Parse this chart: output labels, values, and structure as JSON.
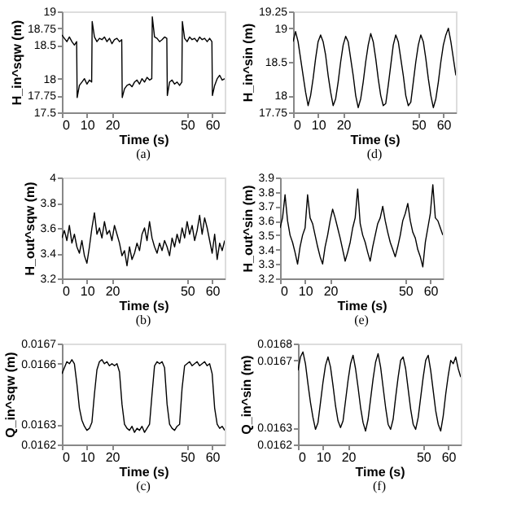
{
  "chart_data": [
    {
      "type": "line",
      "title": "(a)",
      "xlabel": "Time (s)",
      "ylabel": "H_in^sqw (m)",
      "color": "#000000",
      "xlim": [
        0,
        65
      ],
      "xticks": [
        0,
        10,
        20,
        50,
        60
      ],
      "ylim": [
        17.5,
        19
      ],
      "yticks": [
        17.5,
        17.75,
        18,
        18.5,
        18.75,
        19
      ],
      "x": [
        0,
        1,
        2,
        3,
        4,
        5,
        5.9,
        6.1,
        7,
        8,
        9,
        10,
        11,
        11.9,
        12.1,
        13,
        14,
        15,
        16,
        17,
        18,
        19,
        20,
        21,
        22,
        23,
        23.9,
        24.1,
        25,
        26,
        27,
        28,
        29,
        30,
        31,
        32,
        33,
        34,
        35,
        35.9,
        36.1,
        37,
        38,
        39,
        40,
        41,
        41.9,
        42.1,
        43,
        44,
        45,
        46,
        47,
        47.9,
        48.1,
        49,
        50,
        51,
        52,
        53,
        54,
        55,
        56,
        57,
        58,
        59,
        59.9,
        60.1,
        61,
        62,
        63,
        64,
        65
      ],
      "values": [
        18.65,
        18.6,
        18.55,
        18.62,
        18.55,
        18.5,
        18.55,
        17.72,
        17.9,
        17.95,
        18.0,
        17.92,
        17.98,
        17.95,
        18.85,
        18.62,
        18.55,
        18.6,
        18.58,
        18.62,
        18.55,
        18.6,
        18.52,
        18.58,
        18.6,
        18.55,
        18.58,
        17.72,
        17.85,
        17.9,
        17.92,
        17.88,
        17.95,
        17.98,
        17.92,
        18.0,
        17.95,
        18.02,
        17.98,
        18.0,
        18.92,
        18.62,
        18.6,
        18.55,
        18.58,
        18.62,
        18.6,
        17.75,
        17.95,
        17.98,
        17.92,
        17.95,
        17.9,
        17.95,
        18.85,
        18.6,
        18.55,
        18.62,
        18.58,
        18.6,
        18.55,
        18.62,
        18.58,
        18.6,
        18.55,
        18.6,
        18.55,
        17.75,
        17.9,
        18.0,
        18.05,
        17.98,
        18.0
      ]
    },
    {
      "type": "line",
      "title": "(d)",
      "xlabel": "Time (s)",
      "ylabel": "H_in^sin (m)",
      "color": "#000000",
      "xlim": [
        0,
        65
      ],
      "xticks": [
        0,
        10,
        20,
        50,
        60
      ],
      "ylim": [
        17.75,
        19.25
      ],
      "yticks": [
        17.75,
        18,
        18.5,
        19,
        19.25
      ],
      "x": [
        0,
        1,
        2,
        3,
        4,
        5,
        6,
        7,
        8,
        9,
        10,
        11,
        12,
        13,
        14,
        15,
        16,
        17,
        18,
        19,
        20,
        21,
        22,
        23,
        24,
        25,
        26,
        27,
        28,
        29,
        30,
        31,
        32,
        33,
        34,
        35,
        36,
        37,
        38,
        39,
        40,
        41,
        42,
        43,
        44,
        45,
        46,
        47,
        48,
        49,
        50,
        51,
        52,
        53,
        54,
        55,
        56,
        57,
        58,
        59,
        60,
        61,
        62,
        63,
        64,
        65
      ],
      "values": [
        18.8,
        18.95,
        18.8,
        18.55,
        18.3,
        18.05,
        17.85,
        18.0,
        18.25,
        18.55,
        18.8,
        18.9,
        18.8,
        18.6,
        18.3,
        18.05,
        17.85,
        17.95,
        18.2,
        18.5,
        18.75,
        18.88,
        18.8,
        18.55,
        18.3,
        18.0,
        17.82,
        17.95,
        18.2,
        18.5,
        18.75,
        18.92,
        18.8,
        18.55,
        18.25,
        18.0,
        17.85,
        17.88,
        18.15,
        18.45,
        18.75,
        18.9,
        18.8,
        18.55,
        18.3,
        18.0,
        17.85,
        17.9,
        18.2,
        18.5,
        18.75,
        18.9,
        18.8,
        18.55,
        18.25,
        18.0,
        17.82,
        17.95,
        18.2,
        18.5,
        18.75,
        18.9,
        19.0,
        18.8,
        18.55,
        18.3
      ]
    },
    {
      "type": "line",
      "title": "(b)",
      "xlabel": "Time (s)",
      "ylabel": "H_out^sqw (m)",
      "color": "#000000",
      "xlim": [
        0,
        65
      ],
      "xticks": [
        0,
        10,
        20,
        50,
        60
      ],
      "ylim": [
        3.2,
        4
      ],
      "yticks": [
        3.2,
        3.4,
        3.6,
        3.8,
        4
      ],
      "x": [
        0,
        1,
        2,
        3,
        4,
        5,
        6,
        7,
        8,
        9,
        10,
        11,
        12,
        13,
        14,
        15,
        16,
        17,
        18,
        19,
        20,
        21,
        22,
        23,
        24,
        25,
        26,
        27,
        28,
        29,
        30,
        31,
        32,
        33,
        34,
        35,
        36,
        37,
        38,
        39,
        40,
        41,
        42,
        43,
        44,
        45,
        46,
        47,
        48,
        49,
        50,
        51,
        52,
        53,
        54,
        55,
        56,
        57,
        58,
        59,
        60,
        61,
        62,
        63,
        64,
        65
      ],
      "values": [
        3.52,
        3.58,
        3.5,
        3.62,
        3.48,
        3.55,
        3.45,
        3.4,
        3.5,
        3.38,
        3.32,
        3.45,
        3.6,
        3.72,
        3.55,
        3.6,
        3.52,
        3.65,
        3.55,
        3.58,
        3.5,
        3.62,
        3.55,
        3.48,
        3.38,
        3.42,
        3.3,
        3.45,
        3.35,
        3.4,
        3.48,
        3.42,
        3.55,
        3.6,
        3.5,
        3.65,
        3.52,
        3.45,
        3.4,
        3.48,
        3.42,
        3.5,
        3.45,
        3.38,
        3.52,
        3.45,
        3.55,
        3.48,
        3.6,
        3.52,
        3.65,
        3.55,
        3.62,
        3.5,
        3.58,
        3.7,
        3.55,
        3.68,
        3.6,
        3.5,
        3.4,
        3.55,
        3.35,
        3.48,
        3.42,
        3.5
      ]
    },
    {
      "type": "line",
      "title": "(e)",
      "xlabel": "Time (s)",
      "ylabel": "H_out^sin (m)",
      "color": "#000000",
      "xlim": [
        0,
        65
      ],
      "xticks": [
        0,
        10,
        20,
        50,
        60
      ],
      "ylim": [
        3.2,
        3.9
      ],
      "yticks": [
        3.2,
        3.3,
        3.4,
        3.5,
        3.6,
        3.7,
        3.8,
        3.9
      ],
      "x": [
        0,
        1,
        2,
        3,
        4,
        5,
        6,
        7,
        8,
        9,
        10,
        11,
        12,
        13,
        14,
        15,
        16,
        17,
        18,
        19,
        20,
        21,
        22,
        23,
        24,
        25,
        26,
        27,
        28,
        29,
        30,
        31,
        32,
        33,
        34,
        35,
        36,
        37,
        38,
        39,
        40,
        41,
        42,
        43,
        44,
        45,
        46,
        47,
        48,
        49,
        50,
        51,
        52,
        53,
        54,
        55,
        56,
        57,
        58,
        59,
        60,
        61,
        62,
        63,
        64,
        65
      ],
      "values": [
        3.55,
        3.62,
        3.78,
        3.6,
        3.5,
        3.45,
        3.38,
        3.3,
        3.42,
        3.5,
        3.55,
        3.78,
        3.62,
        3.58,
        3.5,
        3.42,
        3.35,
        3.3,
        3.42,
        3.5,
        3.6,
        3.68,
        3.62,
        3.55,
        3.48,
        3.4,
        3.32,
        3.38,
        3.45,
        3.55,
        3.62,
        3.82,
        3.58,
        3.5,
        3.45,
        3.38,
        3.32,
        3.42,
        3.5,
        3.58,
        3.62,
        3.7,
        3.6,
        3.52,
        3.45,
        3.4,
        3.35,
        3.42,
        3.5,
        3.6,
        3.65,
        3.72,
        3.6,
        3.52,
        3.48,
        3.4,
        3.35,
        3.28,
        3.45,
        3.55,
        3.65,
        3.85,
        3.62,
        3.6,
        3.55,
        3.5
      ]
    },
    {
      "type": "line",
      "title": "(c)",
      "xlabel": "Time (s)",
      "ylabel": "Q_in^sqw (m)",
      "color": "#000000",
      "xlim": [
        0,
        65
      ],
      "xticks": [
        0,
        10,
        20,
        50,
        60
      ],
      "ylim": [
        0.0162,
        0.0167
      ],
      "yticks": [
        0.0162,
        0.0163,
        0.0166,
        0.0167
      ],
      "x": [
        0,
        1,
        2,
        3,
        4,
        5,
        6,
        7,
        8,
        9,
        10,
        11,
        12,
        13,
        14,
        15,
        16,
        17,
        18,
        19,
        20,
        21,
        22,
        23,
        24,
        25,
        26,
        27,
        28,
        29,
        30,
        31,
        32,
        33,
        34,
        35,
        36,
        37,
        38,
        39,
        40,
        41,
        42,
        43,
        44,
        45,
        46,
        47,
        48,
        49,
        50,
        51,
        52,
        53,
        54,
        55,
        56,
        57,
        58,
        59,
        60,
        61,
        62,
        63,
        64,
        65
      ],
      "values": [
        0.01655,
        0.01658,
        0.01661,
        0.0166,
        0.01662,
        0.0166,
        0.0165,
        0.01638,
        0.01632,
        0.01629,
        0.01627,
        0.01628,
        0.01631,
        0.01645,
        0.01657,
        0.01661,
        0.01662,
        0.0166,
        0.01661,
        0.01659,
        0.0166,
        0.01659,
        0.0166,
        0.01656,
        0.0164,
        0.0163,
        0.01628,
        0.01627,
        0.01629,
        0.01626,
        0.01628,
        0.01627,
        0.01629,
        0.01626,
        0.01628,
        0.0163,
        0.01645,
        0.01659,
        0.01661,
        0.0166,
        0.01661,
        0.01658,
        0.0164,
        0.0163,
        0.01628,
        0.01627,
        0.01629,
        0.0163,
        0.01648,
        0.01659,
        0.0166,
        0.01661,
        0.01659,
        0.0166,
        0.01661,
        0.01659,
        0.0166,
        0.01661,
        0.01659,
        0.0166,
        0.01655,
        0.01638,
        0.0163,
        0.01628,
        0.01629,
        0.01627
      ]
    },
    {
      "type": "line",
      "title": "(f)",
      "xlabel": "Time (s)",
      "ylabel": "Q_in^sin (m)",
      "color": "#000000",
      "xlim": [
        0,
        65
      ],
      "xticks": [
        0,
        10,
        20,
        50,
        60
      ],
      "ylim": [
        0.0162,
        0.0168
      ],
      "yticks": [
        0.0162,
        0.0163,
        0.0167,
        0.0168
      ],
      "x": [
        0,
        1,
        2,
        3,
        4,
        5,
        6,
        7,
        8,
        9,
        10,
        11,
        12,
        13,
        14,
        15,
        16,
        17,
        18,
        19,
        20,
        21,
        22,
        23,
        24,
        25,
        26,
        27,
        28,
        29,
        30,
        31,
        32,
        33,
        34,
        35,
        36,
        37,
        38,
        39,
        40,
        41,
        42,
        43,
        44,
        45,
        46,
        47,
        48,
        49,
        50,
        51,
        52,
        53,
        54,
        55,
        56,
        57,
        58,
        59,
        60,
        61,
        62,
        63,
        64,
        65
      ],
      "values": [
        0.01664,
        0.01672,
        0.01675,
        0.01668,
        0.01656,
        0.01645,
        0.01636,
        0.01629,
        0.01633,
        0.01645,
        0.01657,
        0.01667,
        0.01672,
        0.01666,
        0.01655,
        0.01643,
        0.01634,
        0.0163,
        0.01634,
        0.01646,
        0.01658,
        0.01668,
        0.01673,
        0.01665,
        0.01654,
        0.01642,
        0.01633,
        0.01628,
        0.01635,
        0.01647,
        0.01659,
        0.01669,
        0.01674,
        0.01666,
        0.01654,
        0.01642,
        0.01632,
        0.01629,
        0.01635,
        0.01648,
        0.0166,
        0.0167,
        0.01672,
        0.01665,
        0.01653,
        0.01641,
        0.01632,
        0.01629,
        0.01636,
        0.01648,
        0.0166,
        0.0167,
        0.01673,
        0.01664,
        0.01652,
        0.0164,
        0.01632,
        0.01628,
        0.01637,
        0.0165,
        0.01661,
        0.0167,
        0.01668,
        0.01672,
        0.01665,
        0.0166
      ]
    }
  ]
}
